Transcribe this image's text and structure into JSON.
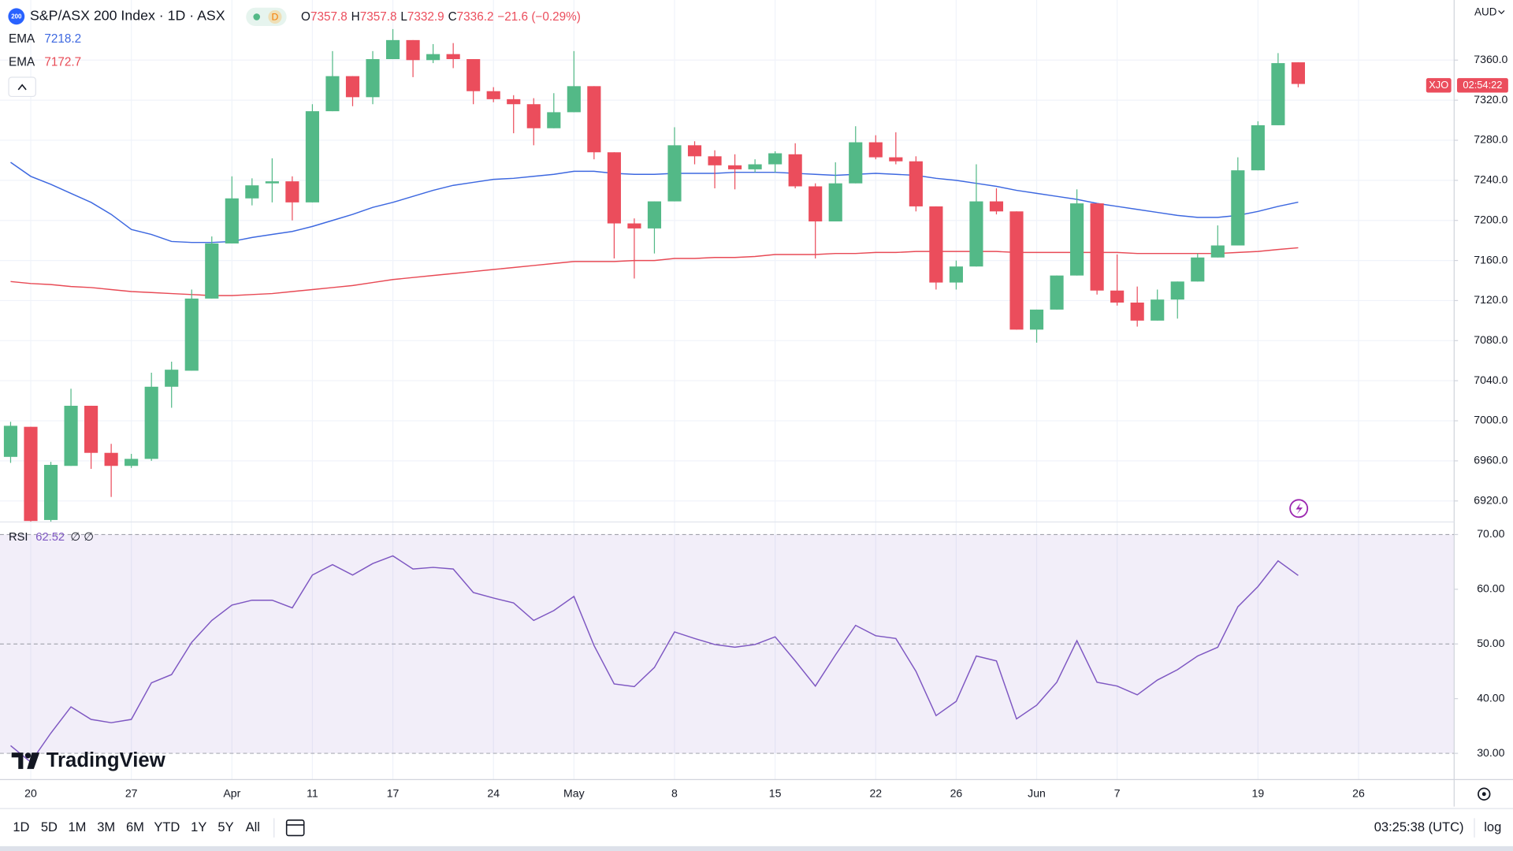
{
  "chart_data": {
    "type": "candlestick",
    "title": "S&P/ASX 200 Index · 1D · ASX",
    "symbol_badge": "200",
    "status_badge": "D",
    "ohlc_letters": [
      "O",
      "H",
      "L",
      "C"
    ],
    "change": "−21.6 (−0.29%)",
    "currency": "AUD",
    "symbol_tag": "XJO",
    "countdown": "02:54:22",
    "up_color": "#53b987",
    "down_color": "#eb4d5c",
    "grid": true,
    "categories": [
      null,
      "20",
      null,
      null,
      null,
      null,
      "27",
      null,
      null,
      null,
      null,
      "Apr",
      null,
      null,
      null,
      "11",
      null,
      null,
      null,
      "17",
      null,
      null,
      null,
      null,
      "24",
      null,
      null,
      null,
      "May",
      null,
      null,
      null,
      null,
      "8",
      null,
      null,
      null,
      null,
      "15",
      null,
      null,
      null,
      null,
      "22",
      null,
      null,
      null,
      "26",
      null,
      null,
      null,
      "Jun",
      null,
      null,
      null,
      "7",
      null,
      null,
      null,
      null,
      null,
      null,
      "19",
      null,
      null,
      null,
      null,
      "26"
    ],
    "open": [
      6964,
      6994,
      6901,
      6955,
      7015,
      6968,
      6955,
      6962,
      7034,
      7050,
      7122,
      7177,
      7222,
      7237,
      7239,
      7218,
      7309,
      7344,
      7323,
      7361,
      7380,
      7360,
      7366,
      7361,
      7329,
      7321,
      7316,
      7292,
      7308,
      7334,
      7268,
      7197,
      7192,
      7219,
      7275,
      7264,
      7255,
      7251,
      7256,
      7266,
      7234,
      7199,
      7237,
      7278,
      7263,
      7259,
      7214,
      7138,
      7154,
      7219,
      7209,
      7091,
      7111,
      7145,
      7217,
      7130,
      7118,
      7100,
      7121,
      7139,
      7163,
      7175,
      7250,
      7295,
      7357.8,
      null,
      null,
      null
    ],
    "high": [
      6999,
      6994,
      6959,
      7032,
      7015,
      6977,
      6967,
      7048,
      7059,
      7131,
      7184,
      7244,
      7242,
      7262,
      7244,
      7316,
      7369,
      7344,
      7369,
      7391,
      7380,
      7376,
      7377,
      7361,
      7333,
      7325,
      7322,
      7327,
      7369,
      7334,
      7268,
      7202,
      7219,
      7293,
      7279,
      7270,
      7266,
      7261,
      7269,
      7277,
      7237,
      7258,
      7294,
      7285,
      7288,
      7264,
      7214,
      7160,
      7256,
      7232,
      7209,
      7111,
      7145,
      7231,
      7217,
      7166,
      7134,
      7131,
      7139,
      7167,
      7195,
      7263,
      7299,
      7367,
      7357.8,
      null,
      null,
      null
    ],
    "low": [
      6958,
      6895,
      6895,
      6955,
      6952,
      6924,
      6953,
      6960,
      7013,
      7050,
      7122,
      7177,
      7215,
      7218,
      7200,
      7218,
      7309,
      7314,
      7316,
      7361,
      7343,
      7357,
      7352,
      7316,
      7318,
      7287,
      7275,
      7292,
      7308,
      7261,
      7162,
      7142,
      7167,
      7219,
      7256,
      7232,
      7231,
      7248,
      7248,
      7232,
      7162,
      7199,
      7237,
      7261,
      7256,
      7209,
      7131,
      7131,
      7154,
      7206,
      7091,
      7078,
      7111,
      7145,
      7126,
      7115,
      7094,
      7100,
      7102,
      7139,
      7163,
      7175,
      7250,
      7295,
      7332.9,
      null,
      null,
      null
    ],
    "close": [
      6995,
      6900,
      6956,
      7015,
      6968,
      6955,
      6962,
      7034,
      7051,
      7122,
      7177,
      7222,
      7235,
      7239,
      7218,
      7309,
      7344,
      7323,
      7361,
      7380,
      7360,
      7366,
      7361,
      7329,
      7321,
      7316,
      7292,
      7308,
      7334,
      7268,
      7197,
      7192,
      7219,
      7275,
      7264,
      7255,
      7251,
      7256,
      7267,
      7234,
      7199,
      7237,
      7278,
      7263,
      7259,
      7214,
      7138,
      7154,
      7219,
      7209,
      7091,
      7111,
      7145,
      7217,
      7130,
      7118,
      7100,
      7121,
      7139,
      7163,
      7175,
      7250,
      7295,
      7357,
      7336.2,
      null,
      null,
      null
    ],
    "overlays": [
      {
        "name": "EMA",
        "color": "#3d68e0",
        "values": [
          7258,
          7244,
          7236,
          7227,
          7218,
          7206,
          7191,
          7186,
          7179,
          7178,
          7178,
          7179,
          7183,
          7186,
          7189,
          7194,
          7200,
          7206,
          7213,
          7218,
          7224,
          7230,
          7235,
          7238,
          7241,
          7242,
          7244,
          7246,
          7249,
          7249,
          7247,
          7246,
          7246,
          7247,
          7247,
          7247,
          7248,
          7248,
          7248,
          7247,
          7246,
          7245,
          7246,
          7247,
          7246,
          7245,
          7242,
          7240,
          7237,
          7234,
          7230,
          7227,
          7224,
          7221,
          7217,
          7214,
          7211,
          7208,
          7205,
          7203,
          7203,
          7205,
          7209,
          7214,
          7218.2,
          null,
          null,
          null
        ]
      },
      {
        "name": "EMA",
        "color": "#e84a55",
        "values": [
          7139,
          7137,
          7136,
          7134,
          7133,
          7131,
          7129,
          7128,
          7127,
          7126,
          7125,
          7125,
          7126,
          7127,
          7129,
          7131,
          7133,
          7135,
          7138,
          7141,
          7143,
          7145,
          7147,
          7149,
          7151,
          7153,
          7155,
          7157,
          7159,
          7159,
          7159,
          7160,
          7160,
          7162,
          7162,
          7163,
          7163,
          7164,
          7166,
          7166,
          7166,
          7167,
          7167,
          7168,
          7168,
          7169,
          7169,
          7169,
          7169,
          7169,
          7168,
          7168,
          7168,
          7168,
          7168,
          7168,
          7167,
          7167,
          7167,
          7167,
          7167,
          7168,
          7169,
          7171,
          7172.7,
          null,
          null,
          null
        ]
      }
    ],
    "ylim": [
      6899,
      7420
    ],
    "yticks": [
      {
        "value": 7360,
        "label": "7360.0"
      },
      {
        "value": 7320,
        "label": "7320.0"
      },
      {
        "value": 7280,
        "label": "7280.0"
      },
      {
        "value": 7240,
        "label": "7240.0"
      },
      {
        "value": 7200,
        "label": "7200.0"
      },
      {
        "value": 7160,
        "label": "7160.0"
      },
      {
        "value": 7120,
        "label": "7120.0"
      },
      {
        "value": 7080,
        "label": "7080.0"
      },
      {
        "value": 7040,
        "label": "7040.0"
      },
      {
        "value": 7000,
        "label": "7000.0"
      },
      {
        "value": 6960,
        "label": "6960.0"
      },
      {
        "value": 6920,
        "label": "6920.0"
      }
    ],
    "rsi": {
      "name": "RSI",
      "extras": "∅ ∅",
      "color": "#7e57c2",
      "values": [
        31.4,
        28.4,
        33.7,
        38.5,
        36.2,
        35.6,
        36.2,
        42.9,
        44.4,
        50.3,
        54.3,
        57.1,
        58.0,
        58.0,
        56.6,
        62.6,
        64.5,
        62.6,
        64.7,
        66.1,
        63.7,
        64.0,
        63.7,
        59.4,
        58.4,
        57.5,
        54.3,
        56.1,
        58.7,
        49.7,
        42.7,
        42.2,
        45.7,
        52.2,
        51.0,
        49.9,
        49.4,
        49.9,
        51.3,
        46.9,
        42.3,
        48.0,
        53.4,
        51.5,
        51.0,
        45.0,
        36.9,
        39.5,
        47.8,
        46.9,
        36.3,
        38.8,
        43.0,
        50.6,
        43.0,
        42.3,
        40.7,
        43.4,
        45.3,
        47.8,
        49.4,
        56.8,
        60.5,
        65.2,
        62.52,
        null,
        null,
        null
      ],
      "ylim": [
        25.2,
        72.3
      ],
      "yticks": [
        {
          "value": 70,
          "label": "70.00"
        },
        {
          "value": 60,
          "label": "60.00"
        },
        {
          "value": 50,
          "label": "50.00"
        },
        {
          "value": 40,
          "label": "40.00"
        },
        {
          "value": 30,
          "label": "30.00"
        }
      ],
      "bands": [
        70,
        50,
        30
      ]
    }
  },
  "branding": "TradingView",
  "toolbar": {
    "ranges": [
      "1D",
      "5D",
      "1M",
      "3M",
      "6M",
      "YTD",
      "1Y",
      "5Y",
      "All"
    ],
    "clock": "03:25:38 (UTC)",
    "scale": "log"
  }
}
